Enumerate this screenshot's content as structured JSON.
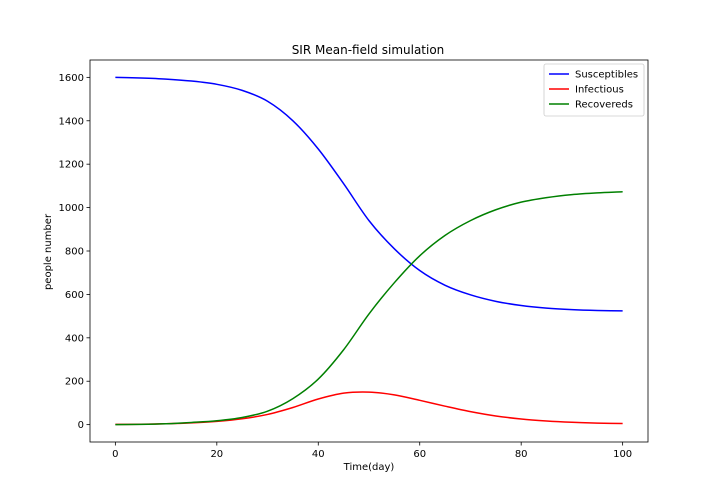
{
  "chart_data": {
    "type": "line",
    "title": "SIR Mean-field simulation",
    "xlabel": "Time(day)",
    "ylabel": "people number",
    "xlim": [
      -5,
      105
    ],
    "ylim": [
      -80,
      1680
    ],
    "x_ticks": [
      0,
      20,
      40,
      60,
      80,
      100
    ],
    "y_ticks": [
      0,
      200,
      400,
      600,
      800,
      1000,
      1200,
      1400,
      1600
    ],
    "grid": false,
    "legend_position": "top-right",
    "x": [
      0,
      5,
      10,
      15,
      20,
      25,
      30,
      35,
      40,
      45,
      50,
      55,
      60,
      65,
      70,
      75,
      80,
      85,
      90,
      95,
      100
    ],
    "series": [
      {
        "name": "Susceptibles",
        "color": "#0000ff",
        "values": [
          1600,
          1597,
          1592,
          1583,
          1568,
          1540,
          1490,
          1400,
          1270,
          1110,
          940,
          810,
          710,
          642,
          598,
          568,
          549,
          537,
          530,
          526,
          524
        ]
      },
      {
        "name": "Infectious",
        "color": "#ff0000",
        "values": [
          1,
          2,
          4,
          8,
          15,
          27,
          47,
          79,
          118,
          145,
          150,
          137,
          112,
          85,
          60,
          40,
          26,
          17,
          11,
          7,
          5
        ]
      },
      {
        "name": "Recovereds",
        "color": "#008000",
        "values": [
          0,
          1,
          4,
          10,
          18,
          33,
          62,
          120,
          210,
          345,
          510,
          654,
          778,
          872,
          940,
          990,
          1025,
          1046,
          1060,
          1068,
          1073
        ]
      }
    ]
  }
}
